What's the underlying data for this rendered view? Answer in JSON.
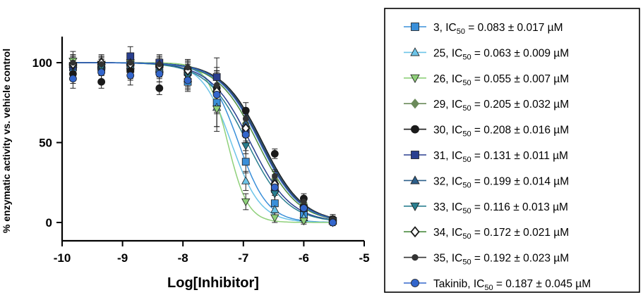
{
  "chart_data": {
    "type": "scatter",
    "xlabel": "Log[Inhibitor]",
    "ylabel": "% enzymatic activity vs. vehicle control",
    "xlim": [
      -10,
      -5
    ],
    "ylim": [
      -12,
      120
    ],
    "x_ticks": [
      -10,
      -9,
      -8,
      -7,
      -6,
      -5
    ],
    "y_ticks": [
      0,
      50,
      100
    ],
    "x_tick_labels": [
      "-10",
      "-9",
      "-8",
      "-7",
      "-6",
      "-5"
    ],
    "y_tick_labels": [
      "0",
      "50",
      "100"
    ],
    "legend_position": "right",
    "x": [
      -9.82,
      -9.35,
      -8.87,
      -8.39,
      -7.92,
      -7.44,
      -6.96,
      -6.48,
      -6.0,
      -5.52
    ],
    "series": [
      {
        "name": "3",
        "label": "3, IC",
        "ic50_text": " = 0.083 ± 0.017 µM",
        "ic50_uM": 0.083,
        "color": "#3a8fd9",
        "marker": "square",
        "values": [
          97,
          98,
          96,
          95,
          88,
          75,
          38,
          12,
          5,
          1
        ],
        "errors": [
          6,
          5,
          6,
          5,
          6,
          15,
          7,
          5,
          3,
          2
        ]
      },
      {
        "name": "25",
        "label": "25, IC",
        "ic50_text": " = 0.063 ± 0.009 µM",
        "ic50_uM": 0.063,
        "color": "#6cc4e8",
        "marker": "triangle-up",
        "values": [
          100,
          99,
          98,
          96,
          90,
          72,
          26,
          8,
          3,
          1
        ],
        "errors": [
          5,
          5,
          6,
          5,
          6,
          12,
          6,
          4,
          3,
          2
        ]
      },
      {
        "name": "26",
        "label": "26, IC",
        "ic50_text": " = 0.055 ± 0.007 µM",
        "ic50_uM": 0.055,
        "color": "#8fd07a",
        "marker": "triangle-down",
        "values": [
          101,
          99,
          100,
          97,
          91,
          71,
          13,
          3,
          1,
          0
        ],
        "errors": [
          6,
          5,
          6,
          5,
          6,
          14,
          5,
          3,
          2,
          2
        ]
      },
      {
        "name": "29",
        "label": "29, IC",
        "ic50_text": " = 0.205 ± 0.032 µM",
        "ic50_uM": 0.205,
        "color": "#6b8a5a",
        "marker": "diamond",
        "values": [
          99,
          100,
          101,
          98,
          96,
          85,
          62,
          27,
          12,
          2
        ],
        "errors": [
          5,
          4,
          5,
          4,
          5,
          10,
          6,
          5,
          3,
          3
        ]
      },
      {
        "name": "30",
        "label": "30, IC",
        "ic50_text": " = 0.208 ± 0.016 µM",
        "ic50_uM": 0.208,
        "color": "#1a1a1a",
        "marker": "circle",
        "values": [
          93,
          88,
          95,
          84,
          96,
          84,
          70,
          43,
          15,
          2
        ],
        "errors": [
          6,
          4,
          6,
          4,
          5,
          10,
          5,
          3,
          3,
          2
        ]
      },
      {
        "name": "31",
        "label": "31, IC",
        "ic50_text": " = 0.131 ± 0.011 µM",
        "ic50_uM": 0.131,
        "color": "#2a3f8f",
        "marker": "square",
        "values": [
          98,
          97,
          104,
          100,
          94,
          91,
          56,
          21,
          9,
          1
        ],
        "errors": [
          5,
          5,
          6,
          5,
          5,
          12,
          5,
          4,
          3,
          2
        ]
      },
      {
        "name": "32",
        "label": "32, IC",
        "ic50_text": " = 0.199 ± 0.014 µM",
        "ic50_uM": 0.199,
        "color": "#2d5f8a",
        "marker": "triangle-up",
        "values": [
          99,
          98,
          100,
          99,
          97,
          84,
          62,
          26,
          11,
          2
        ],
        "errors": [
          5,
          5,
          6,
          5,
          5,
          11,
          5,
          4,
          3,
          2
        ]
      },
      {
        "name": "33",
        "label": "33, IC",
        "ic50_text": " = 0.116 ± 0.013 µM",
        "ic50_uM": 0.116,
        "color": "#2a7f90",
        "marker": "triangle-down",
        "values": [
          98,
          97,
          99,
          96,
          92,
          80,
          48,
          18,
          8,
          1
        ],
        "errors": [
          5,
          5,
          6,
          5,
          5,
          11,
          5,
          4,
          3,
          2
        ]
      },
      {
        "name": "34",
        "label": "34, IC",
        "ic50_text": " = 0.172 ± 0.021 µM",
        "ic50_uM": 0.172,
        "color": "#4a8a3f",
        "marker": "diamond-open",
        "values": [
          99,
          100,
          99,
          98,
          95,
          82,
          59,
          24,
          10,
          1
        ],
        "errors": [
          5,
          5,
          6,
          5,
          5,
          11,
          5,
          4,
          3,
          2
        ]
      },
      {
        "name": "35",
        "label": "35, IC",
        "ic50_text": " = 0.192 ± 0.023 µM",
        "ic50_uM": 0.192,
        "color": "#333333",
        "marker": "circle-small",
        "values": [
          100,
          99,
          100,
          99,
          97,
          86,
          65,
          29,
          13,
          2
        ],
        "errors": [
          5,
          5,
          6,
          5,
          5,
          11,
          5,
          4,
          3,
          2
        ]
      },
      {
        "name": "Takinib",
        "label": "Takinib, IC",
        "ic50_text": " = 0.187 ± 0.045 µM",
        "ic50_uM": 0.187,
        "color": "#3366cc",
        "marker": "circle",
        "values": [
          90,
          94,
          92,
          93,
          89,
          80,
          55,
          22,
          9,
          0
        ],
        "errors": [
          6,
          5,
          6,
          5,
          6,
          12,
          5,
          4,
          3,
          2
        ]
      }
    ]
  }
}
